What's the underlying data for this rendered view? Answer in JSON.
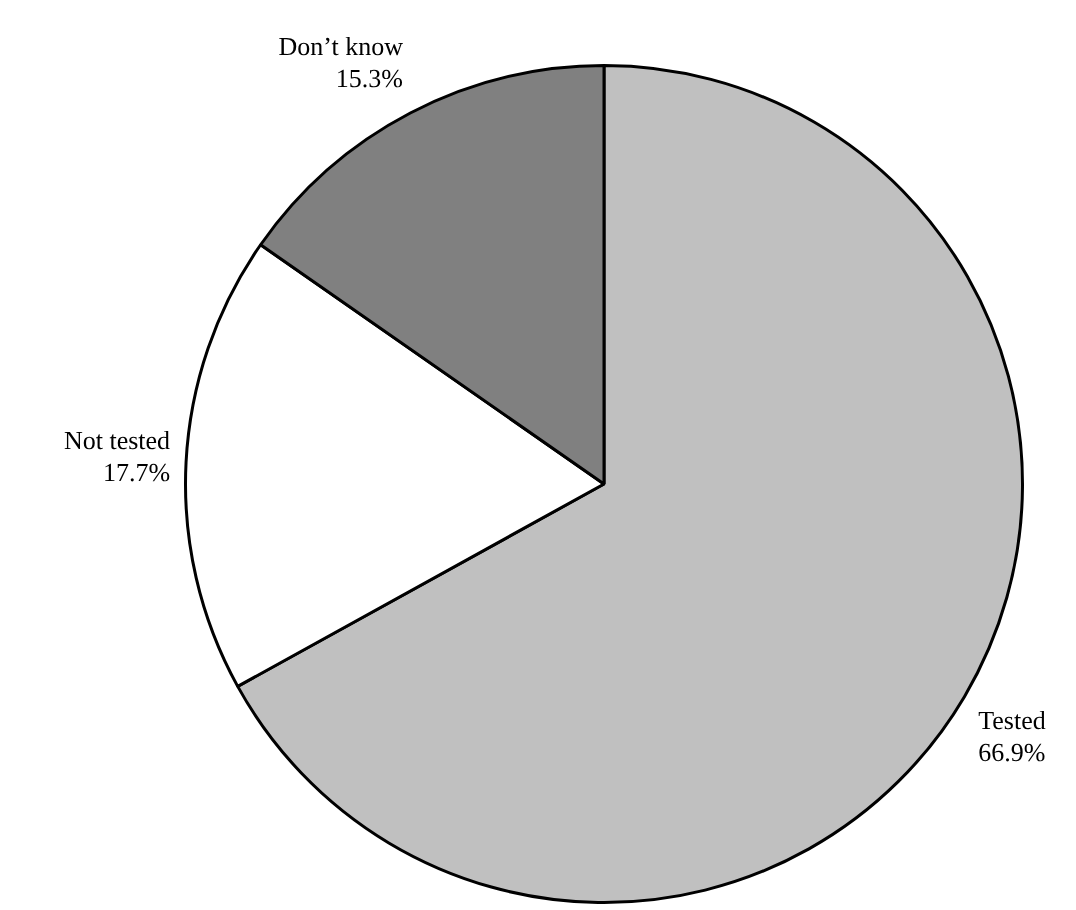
{
  "chart_data": {
    "type": "pie",
    "categories": [
      "Tested",
      "Not tested",
      "Don’t know"
    ],
    "values": [
      66.9,
      17.7,
      15.3
    ],
    "colors": [
      "#c0c0c0",
      "#ffffff",
      "#808080"
    ],
    "value_labels": [
      "66.9%",
      "17.7%",
      "15.3%"
    ],
    "legend": false
  }
}
